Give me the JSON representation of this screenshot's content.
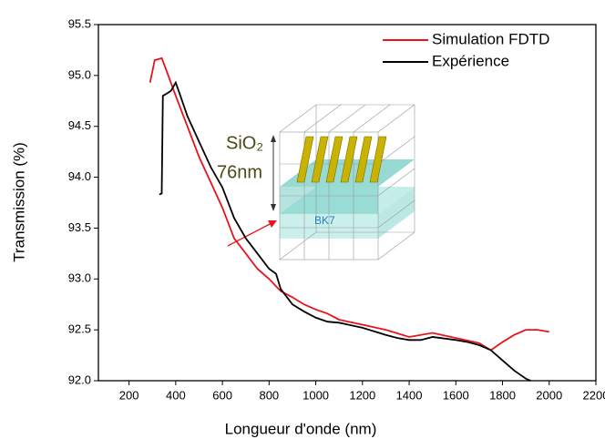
{
  "chart_data": {
    "type": "line",
    "x_label": "Longueur d'onde (nm)",
    "y_label": "Transmission (%)",
    "xlim": [
      100,
      2200
    ],
    "xticks": [
      200,
      400,
      600,
      800,
      1000,
      1200,
      1400,
      1600,
      1800,
      2000,
      2200
    ],
    "ylim": [
      92,
      95.5
    ],
    "yticks": [
      {
        "value": 92,
        "label": "92.0"
      },
      92.5,
      {
        "value": 93,
        "label": "93.0"
      },
      93.5,
      {
        "value": 94,
        "label": "94.0"
      },
      94.5,
      {
        "value": 95,
        "label": "95.0"
      },
      95.5
    ],
    "legend": "top-right",
    "annotations": [
      "SiO₂",
      "76nm",
      "BK7"
    ],
    "series": [
      {
        "name": "Simulation FDTD",
        "color": "#e8141c",
        "x": [
          290,
          310,
          340,
          360,
          400,
          450,
          500,
          550,
          600,
          650,
          700,
          750,
          800,
          850,
          900,
          950,
          1000,
          1050,
          1100,
          1200,
          1300,
          1400,
          1500,
          1600,
          1700,
          1750,
          1800,
          1850,
          1900,
          1950,
          2000
        ],
        "values": [
          94.93,
          95.15,
          95.17,
          95.05,
          94.8,
          94.5,
          94.2,
          93.95,
          93.7,
          93.4,
          93.25,
          93.1,
          93.0,
          92.88,
          92.82,
          92.75,
          92.7,
          92.66,
          92.6,
          92.55,
          92.5,
          92.43,
          92.47,
          92.42,
          92.37,
          92.3,
          92.38,
          92.45,
          92.5,
          92.5,
          92.48
        ]
      },
      {
        "name": "Expérience",
        "color": "#000000",
        "x": [
          330,
          340,
          345,
          360,
          380,
          400,
          420,
          450,
          500,
          550,
          600,
          650,
          700,
          750,
          800,
          830,
          850,
          900,
          950,
          1000,
          1050,
          1100,
          1200,
          1300,
          1350,
          1400,
          1450,
          1500,
          1600,
          1650,
          1700,
          1750,
          1800,
          1850,
          1900,
          1920
        ],
        "values": [
          93.83,
          93.84,
          94.8,
          94.82,
          94.85,
          94.93,
          94.8,
          94.6,
          94.35,
          94.1,
          93.9,
          93.6,
          93.4,
          93.25,
          93.1,
          93.05,
          92.9,
          92.75,
          92.68,
          92.62,
          92.58,
          92.57,
          92.52,
          92.45,
          92.42,
          92.4,
          92.4,
          92.43,
          92.4,
          92.38,
          92.35,
          92.3,
          92.2,
          92.1,
          92.02,
          92.0
        ]
      }
    ]
  }
}
